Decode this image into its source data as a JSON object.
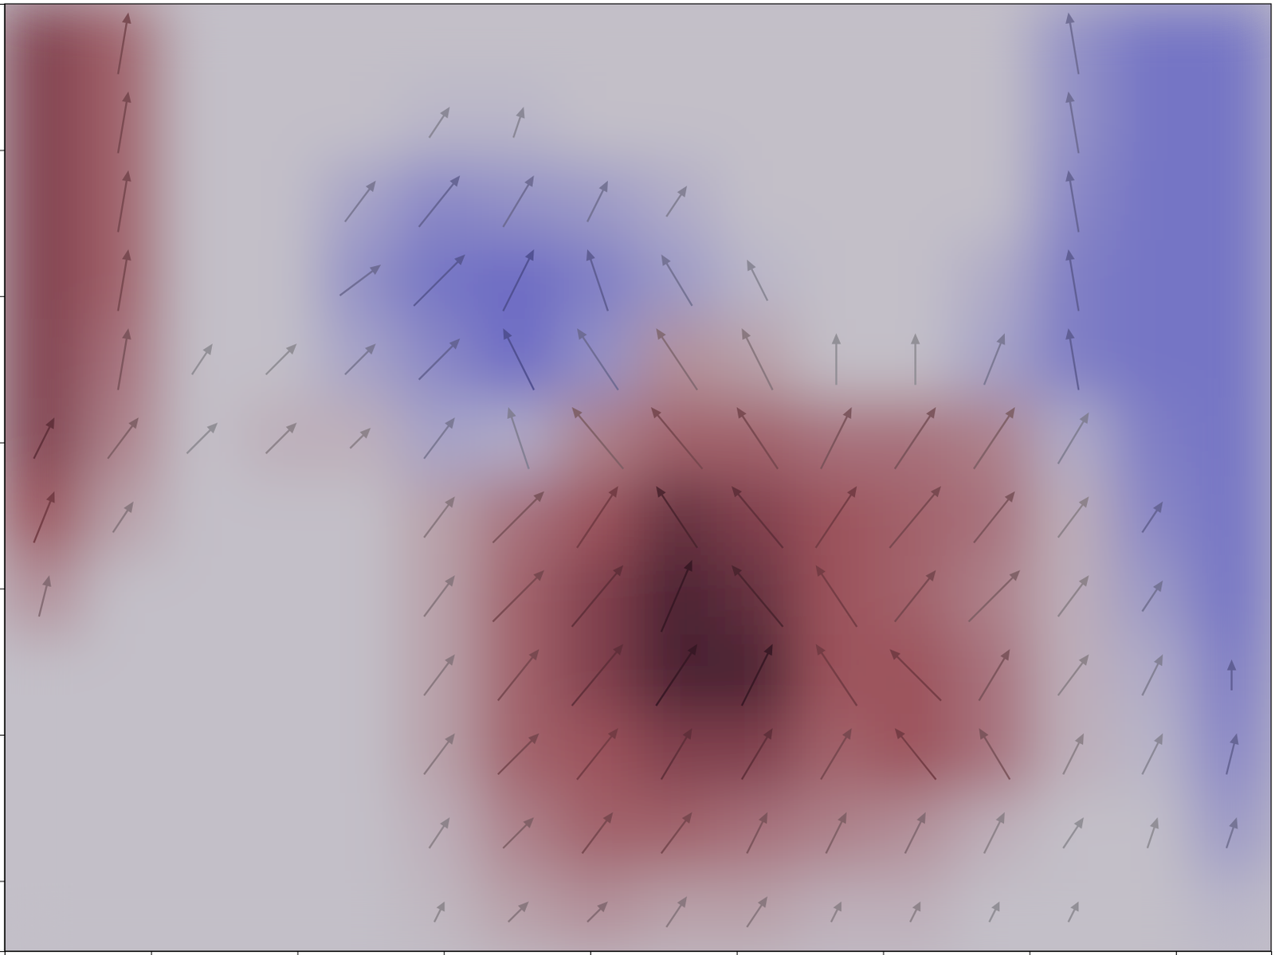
{
  "chart_data": {
    "type": "quiver",
    "xlim": [
      0,
      8.65
    ],
    "ylim": [
      6.48,
      0
    ],
    "xticks": [
      1,
      2,
      3,
      4,
      5,
      6,
      7,
      8
    ],
    "yticks": [
      1,
      2,
      3,
      4,
      5,
      6
    ],
    "tick_labels": false,
    "x": [
      0.27,
      0.81,
      1.35,
      1.89,
      2.43,
      2.97,
      3.51,
      4.05,
      4.59,
      5.14,
      5.68,
      6.22,
      6.76,
      7.3,
      7.84,
      8.38
    ],
    "y": [
      0.27,
      0.81,
      1.35,
      1.89,
      2.43,
      2.97,
      3.51,
      4.05,
      4.59,
      5.13,
      5.67,
      6.21
    ],
    "color_range": [
      -1,
      1
    ],
    "cells": [
      [
        0.8,
        0.6,
        0,
        0,
        0,
        0,
        0,
        0,
        0,
        0,
        0,
        0,
        0,
        -0.5,
        -0.8,
        -0.8
      ],
      [
        0.8,
        0.6,
        0,
        0,
        0,
        -0.1,
        -0.1,
        0,
        0,
        0,
        0,
        0,
        0,
        -0.5,
        -0.8,
        -0.8
      ],
      [
        0.8,
        0.6,
        0,
        0,
        -0.3,
        -0.6,
        -0.5,
        -0.4,
        -0.2,
        0,
        0,
        0,
        0,
        -0.6,
        -0.8,
        -0.8
      ],
      [
        0.8,
        0.6,
        0,
        0,
        -0.5,
        -0.8,
        -0.9,
        -0.7,
        -0.4,
        -0.1,
        0,
        0,
        -0.2,
        -0.7,
        -0.8,
        -0.8
      ],
      [
        0.8,
        0.5,
        0,
        0,
        -0.3,
        -0.6,
        -0.9,
        -0.5,
        0.3,
        0.2,
        0,
        0,
        -0.3,
        -0.7,
        -0.8,
        -0.8
      ],
      [
        0.8,
        0.4,
        0,
        0.1,
        0.1,
        -0.3,
        -0.2,
        0.4,
        0.6,
        0.6,
        0.5,
        0.5,
        0.4,
        -0.2,
        -0.7,
        -0.8
      ],
      [
        0.7,
        0.2,
        0,
        0,
        0,
        0.2,
        0.5,
        0.7,
        0.9,
        0.8,
        0.7,
        0.6,
        0.5,
        0.1,
        -0.6,
        -0.8
      ],
      [
        0.3,
        0,
        0,
        0,
        0,
        0.2,
        0.6,
        0.8,
        1.0,
        0.9,
        0.7,
        0.6,
        0.4,
        0.1,
        -0.4,
        -0.8
      ],
      [
        0,
        0,
        0,
        0,
        0,
        0.2,
        0.6,
        0.8,
        1.0,
        1.0,
        0.7,
        0.7,
        0.5,
        0.1,
        -0.2,
        -0.7
      ],
      [
        0,
        0,
        0,
        0,
        0,
        0.2,
        0.6,
        0.7,
        0.8,
        0.8,
        0.6,
        0.7,
        0.5,
        0.1,
        -0.1,
        -0.6
      ],
      [
        0,
        0,
        0,
        0,
        0,
        0.1,
        0.4,
        0.6,
        0.6,
        0.5,
        0.4,
        0.3,
        0.1,
        0,
        0,
        -0.4
      ],
      [
        0,
        0,
        0,
        0,
        0,
        0.05,
        0.2,
        0.3,
        0.2,
        0.2,
        0.1,
        0.1,
        0,
        0,
        0,
        -0.1
      ]
    ],
    "u": [
      [
        0,
        0.1,
        0,
        0,
        0,
        0,
        0,
        0,
        0,
        0,
        0,
        0,
        0,
        -0.1,
        0,
        0
      ],
      [
        0,
        0.1,
        0,
        0,
        0,
        0.2,
        0.1,
        0,
        0,
        0,
        0,
        0,
        0,
        -0.1,
        0,
        0
      ],
      [
        0,
        0.1,
        0,
        0,
        0.3,
        0.4,
        0.3,
        0.2,
        0.2,
        0,
        0,
        0,
        0,
        -0.1,
        0,
        0
      ],
      [
        0,
        0.1,
        0,
        0,
        0.4,
        0.5,
        0.3,
        -0.2,
        -0.3,
        -0.2,
        0,
        0,
        0,
        -0.1,
        0,
        0
      ],
      [
        0,
        0.1,
        0.2,
        0.3,
        0.3,
        0.4,
        -0.3,
        -0.4,
        -0.4,
        -0.3,
        0,
        0,
        0.2,
        -0.1,
        0,
        0
      ],
      [
        0.2,
        0.3,
        0.3,
        0.3,
        0.2,
        0.3,
        -0.2,
        -0.5,
        -0.5,
        -0.4,
        0.3,
        0.4,
        0.4,
        0.3,
        0,
        0
      ],
      [
        0.2,
        0.2,
        0,
        0,
        0,
        0.3,
        0.5,
        0.4,
        -0.4,
        -0.5,
        0.4,
        0.5,
        0.4,
        0.3,
        0.2,
        0
      ],
      [
        0.1,
        0,
        0,
        0,
        0,
        0.3,
        0.5,
        0.5,
        0.3,
        -0.5,
        -0.4,
        0.4,
        0.5,
        0.3,
        0.2,
        0
      ],
      [
        0,
        0,
        0,
        0,
        0,
        0.3,
        0.4,
        0.5,
        0.4,
        0.3,
        -0.4,
        -0.5,
        0.3,
        0.3,
        0.2,
        0
      ],
      [
        0,
        0,
        0,
        0,
        0,
        0.3,
        0.4,
        0.4,
        0.3,
        0.3,
        0.3,
        -0.4,
        -0.3,
        0.2,
        0.2,
        0.1
      ],
      [
        0,
        0,
        0,
        0,
        0,
        0.2,
        0.3,
        0.3,
        0.3,
        0.2,
        0.2,
        0.2,
        0.2,
        0.2,
        0.1,
        0.1
      ],
      [
        0,
        0,
        0,
        0,
        0,
        0.1,
        0.2,
        0.2,
        0.2,
        0.2,
        0.1,
        0.1,
        0.1,
        0.1,
        0,
        0
      ]
    ],
    "v": [
      [
        0,
        0.6,
        0,
        0,
        0,
        0,
        0,
        0,
        0,
        0,
        0,
        0,
        0,
        0.6,
        0,
        0
      ],
      [
        0,
        0.6,
        0,
        0,
        0,
        0.3,
        0.3,
        0,
        0,
        0,
        0,
        0,
        0,
        0.6,
        0,
        0
      ],
      [
        0,
        0.6,
        0,
        0,
        0.4,
        0.5,
        0.5,
        0.4,
        0.3,
        0,
        0,
        0,
        0,
        0.6,
        0,
        0
      ],
      [
        0,
        0.6,
        0,
        0,
        0.3,
        0.5,
        0.6,
        0.6,
        0.5,
        0.4,
        0,
        0,
        0,
        0.6,
        0,
        0
      ],
      [
        0,
        0.6,
        0.3,
        0.3,
        0.3,
        0.4,
        0.6,
        0.6,
        0.6,
        0.6,
        0.5,
        0.5,
        0.5,
        0.6,
        0,
        0
      ],
      [
        0.4,
        0.4,
        0.3,
        0.3,
        0.2,
        0.4,
        0.6,
        0.6,
        0.6,
        0.6,
        0.6,
        0.6,
        0.6,
        0.5,
        0,
        0
      ],
      [
        0.5,
        0.3,
        0,
        0,
        0,
        0.4,
        0.5,
        0.6,
        0.6,
        0.6,
        0.6,
        0.6,
        0.5,
        0.4,
        0.3,
        0
      ],
      [
        0.4,
        0,
        0,
        0,
        0,
        0.4,
        0.5,
        0.6,
        0.7,
        0.6,
        0.6,
        0.5,
        0.5,
        0.4,
        0.3,
        0
      ],
      [
        0,
        0,
        0,
        0,
        0,
        0.4,
        0.5,
        0.6,
        0.6,
        0.6,
        0.6,
        0.5,
        0.5,
        0.4,
        0.4,
        0.3
      ],
      [
        0,
        0,
        0,
        0,
        0,
        0.4,
        0.4,
        0.5,
        0.5,
        0.5,
        0.5,
        0.5,
        0.5,
        0.4,
        0.4,
        0.4
      ],
      [
        0,
        0,
        0,
        0,
        0,
        0.3,
        0.3,
        0.4,
        0.4,
        0.4,
        0.4,
        0.4,
        0.4,
        0.3,
        0.3,
        0.3
      ],
      [
        0,
        0,
        0,
        0,
        0,
        0.2,
        0.2,
        0.2,
        0.3,
        0.3,
        0.2,
        0.2,
        0.2,
        0.2,
        0,
        0
      ]
    ]
  }
}
